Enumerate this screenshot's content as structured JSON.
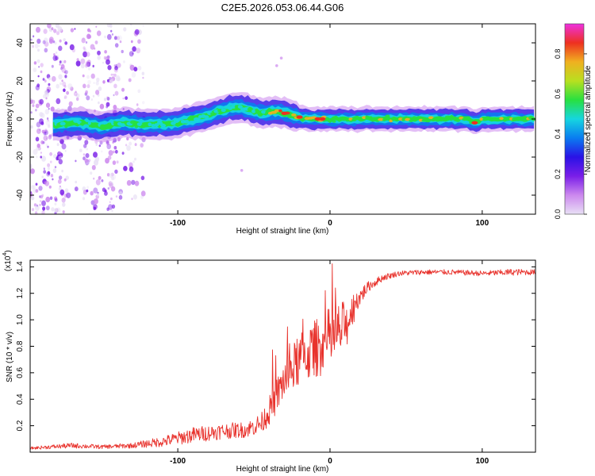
{
  "figure_title": "C2E5.2026.053.06.44.G06",
  "colors": {
    "snr_line": "#e8322c",
    "frame": "#000000",
    "colormap": [
      "#e8e0f5",
      "#cc88ee",
      "#7a1ee8",
      "#2a12e6",
      "#0a7cf0",
      "#16d6e0",
      "#28e040",
      "#b8e020",
      "#f0b020",
      "#ee3020",
      "#ee30e0"
    ]
  },
  "chart_data": [
    {
      "id": "spectrogram",
      "type": "heatmap",
      "xlabel": "Height of straight line (km)",
      "ylabel": "Frequency (Hz)",
      "xlim": [
        -197,
        135
      ],
      "ylim": [
        -50,
        50
      ],
      "xticks": [
        -100,
        0,
        100
      ],
      "yticks": [
        -40,
        -20,
        0,
        20,
        40
      ],
      "xtick_labels": [
        "-100",
        "0",
        "100"
      ],
      "ytick_labels": [
        "-40",
        "-20",
        "0",
        "20",
        "40"
      ],
      "ridge": {
        "description_units": "Hz vs km",
        "x": [
          -180,
          -165,
          -150,
          -135,
          -120,
          -100,
          -80,
          -65,
          -58,
          -45,
          -35,
          -25,
          -15,
          -5,
          10,
          30,
          60,
          90,
          95,
          100,
          135
        ],
        "y": [
          -3,
          -2,
          -4,
          -2,
          -3,
          -2,
          2,
          6,
          6,
          3,
          4,
          2,
          0,
          0,
          0,
          0,
          0,
          0,
          -2,
          0,
          0
        ]
      },
      "colorbar": {
        "label": "Normalized spectral amplitude",
        "range": [
          0,
          0.95
        ],
        "ticks": [
          0.0,
          0.2,
          0.4,
          0.6,
          0.8
        ],
        "tick_labels": [
          "0.0",
          "0.2",
          "0.4",
          "0.6",
          "0.8"
        ]
      }
    },
    {
      "id": "snr",
      "type": "line",
      "xlabel": "Height of straight line (km)",
      "ylabel": "SNR (10 * v/v)",
      "multiplier_label": "(x10",
      "multiplier_exp": "4",
      "multiplier_close": ")",
      "xlim": [
        -197,
        135
      ],
      "ylim": [
        0,
        1.45
      ],
      "xticks": [
        -100,
        0,
        100
      ],
      "yticks": [
        0.2,
        0.4,
        0.6,
        0.8,
        1.0,
        1.2,
        1.4
      ],
      "xtick_labels": [
        "-100",
        "0",
        "100"
      ],
      "ytick_labels": [
        "0.2",
        "0.4",
        "0.6",
        "0.8",
        "1.0",
        "1.2",
        "1.4"
      ],
      "envelope": {
        "x": [
          -197,
          -170,
          -150,
          -130,
          -110,
          -90,
          -70,
          -55,
          -45,
          -38,
          -30,
          -25,
          -20,
          -10,
          0,
          10,
          18,
          25,
          35,
          45,
          60,
          80,
          100,
          120,
          135
        ],
        "mean": [
          0.03,
          0.05,
          0.04,
          0.05,
          0.08,
          0.13,
          0.16,
          0.17,
          0.22,
          0.35,
          0.55,
          0.62,
          0.7,
          0.78,
          0.85,
          0.95,
          1.15,
          1.25,
          1.32,
          1.35,
          1.36,
          1.36,
          1.35,
          1.36,
          1.36
        ],
        "noise": [
          0.01,
          0.02,
          0.015,
          0.02,
          0.04,
          0.06,
          0.06,
          0.06,
          0.08,
          0.12,
          0.16,
          0.18,
          0.2,
          0.22,
          0.25,
          0.2,
          0.08,
          0.04,
          0.025,
          0.02,
          0.02,
          0.02,
          0.02,
          0.025,
          0.02
        ]
      }
    }
  ]
}
